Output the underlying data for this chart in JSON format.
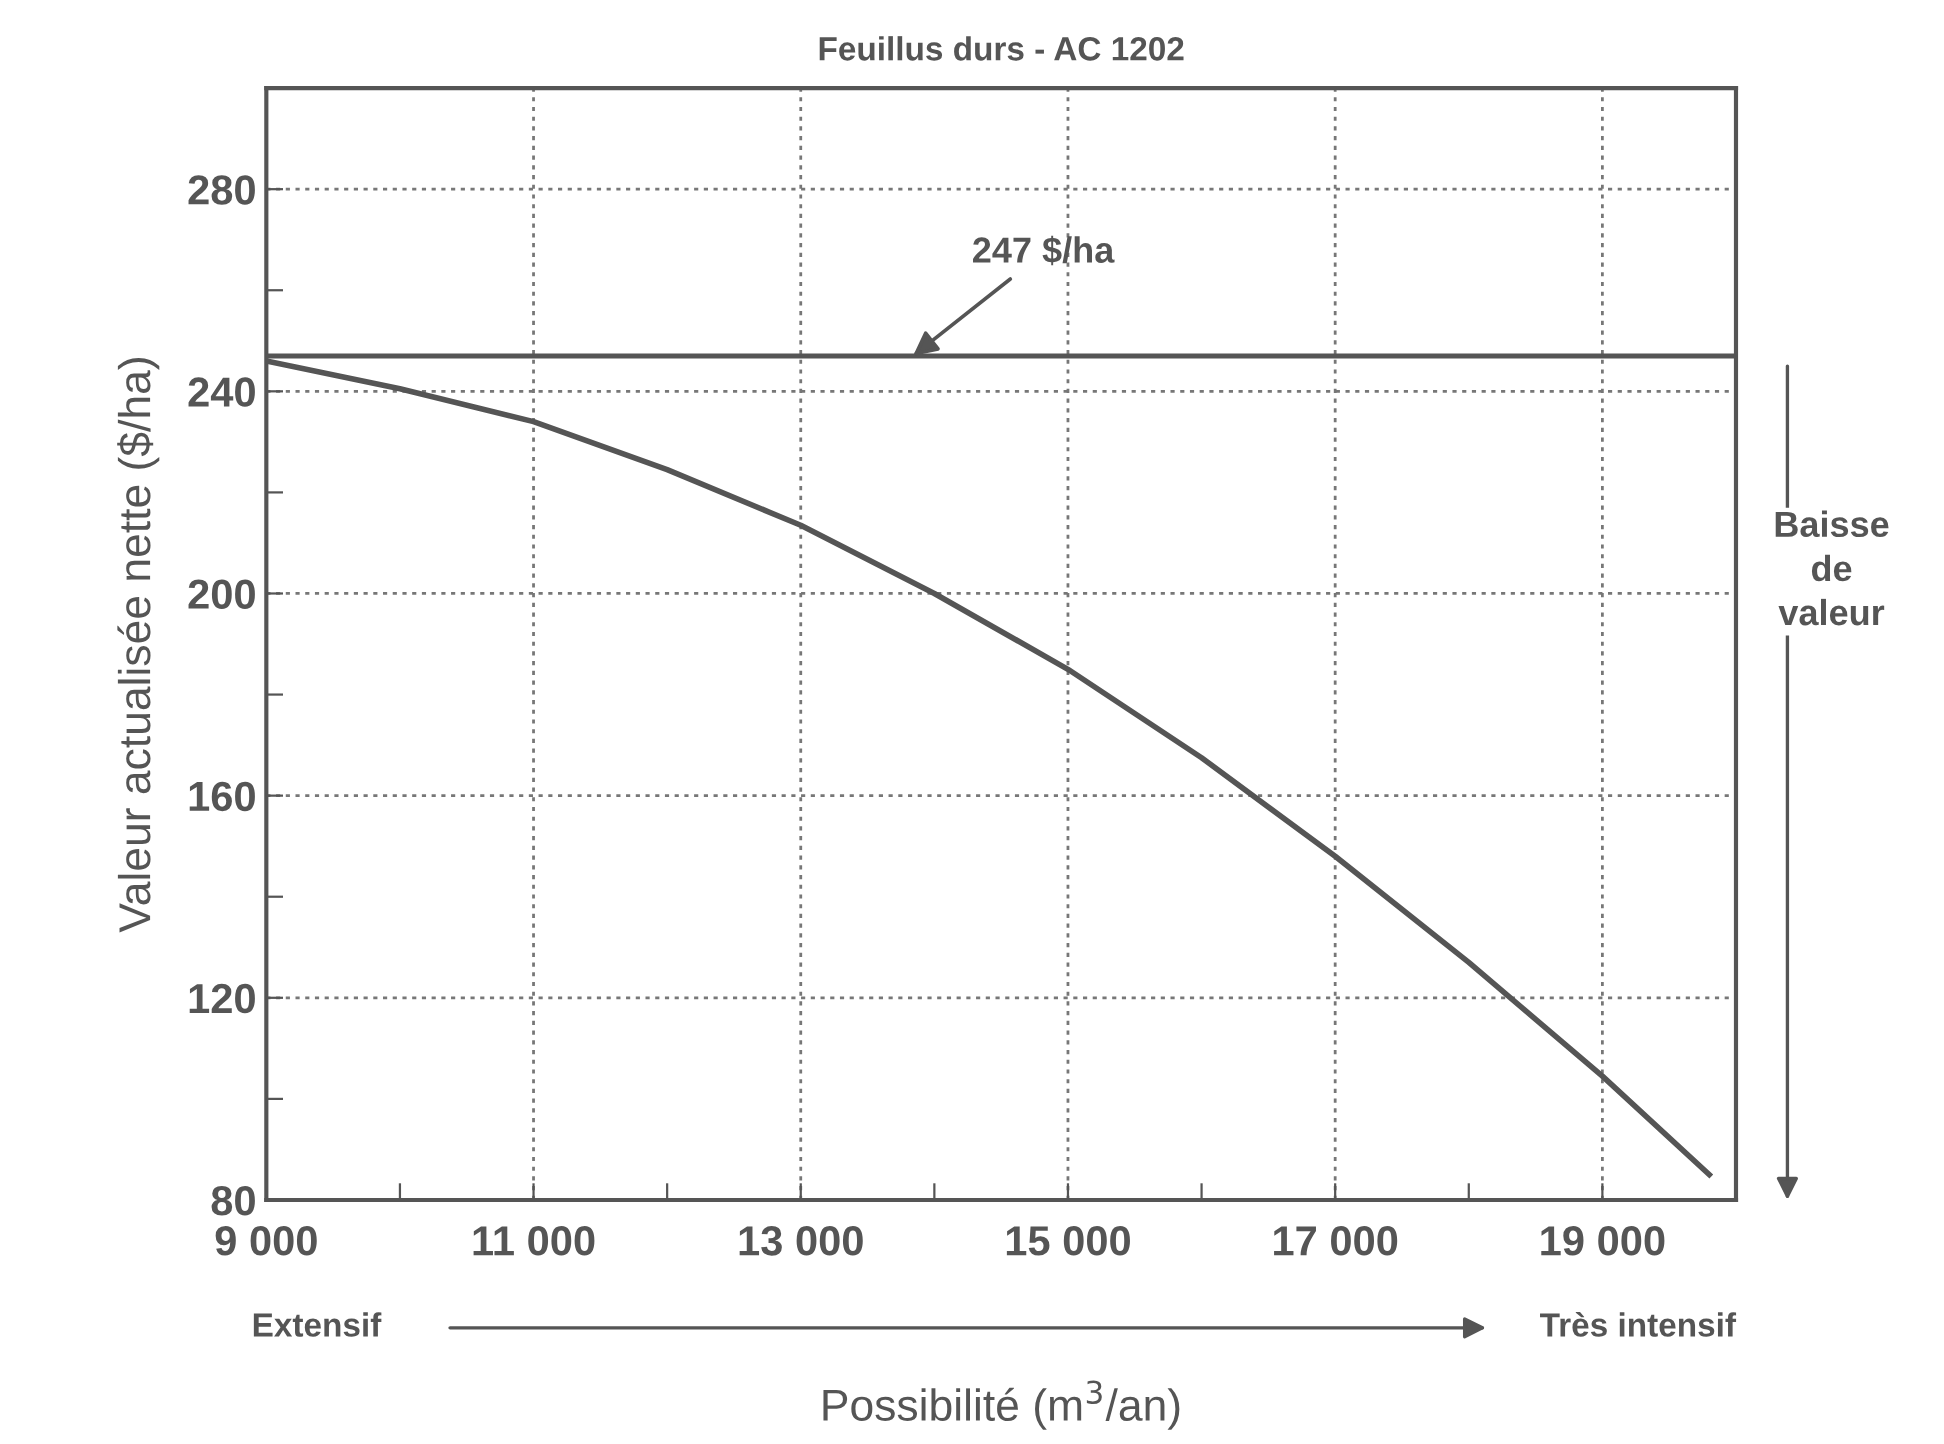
{
  "chart_data": {
    "type": "line",
    "title": "Feuillus durs - AC 1202",
    "xlabel": "Possibilité (m$^{3}$/an)",
    "ylabel": "Valeur actualisée nette ($/ha)",
    "x": [
      9000,
      10000,
      11000,
      12000,
      13000,
      14000,
      15000,
      16000,
      17000,
      18000,
      19000,
      19800
    ],
    "series": [
      {
        "color": "#555555",
        "values": [
          246,
          240.5,
          234,
          224.5,
          213.5,
          200,
          185,
          167.5,
          148,
          127,
          104.5,
          85
        ]
      }
    ],
    "xlim": [
      9000,
      20000
    ],
    "ylim": [
      80,
      300
    ],
    "xticks": [
      {
        "value": 9000,
        "label": "9 000"
      },
      {
        "value": 10000,
        "label": null
      },
      {
        "value": 11000,
        "label": "11 000"
      },
      {
        "value": 12000,
        "label": null
      },
      {
        "value": 13000,
        "label": "13 000"
      },
      {
        "value": 14000,
        "label": null
      },
      {
        "value": 15000,
        "label": "15 000"
      },
      {
        "value": 16000,
        "label": null
      },
      {
        "value": 17000,
        "label": "17 000"
      },
      {
        "value": 18000,
        "label": null
      },
      {
        "value": 19000,
        "label": "19 000"
      },
      {
        "value": 20000,
        "label": null
      }
    ],
    "yticks": [
      80,
      {
        "value": 100,
        "label": null
      },
      120,
      {
        "value": 140,
        "label": null
      },
      160,
      {
        "value": 180,
        "label": null
      },
      200,
      {
        "value": 220,
        "label": null
      },
      240,
      {
        "value": 260,
        "label": null
      },
      280,
      {
        "value": 300,
        "label": null
      }
    ],
    "ref_lines": [
      {
        "axis": "y",
        "value": 247,
        "label": "247 $/ha",
        "color": "#555555"
      }
    ],
    "annotations": [
      "Baisse\nde\nvaleur",
      "Extensif",
      "Très intensif"
    ],
    "grid": true,
    "marker": "none",
    "line_style": "solid"
  }
}
